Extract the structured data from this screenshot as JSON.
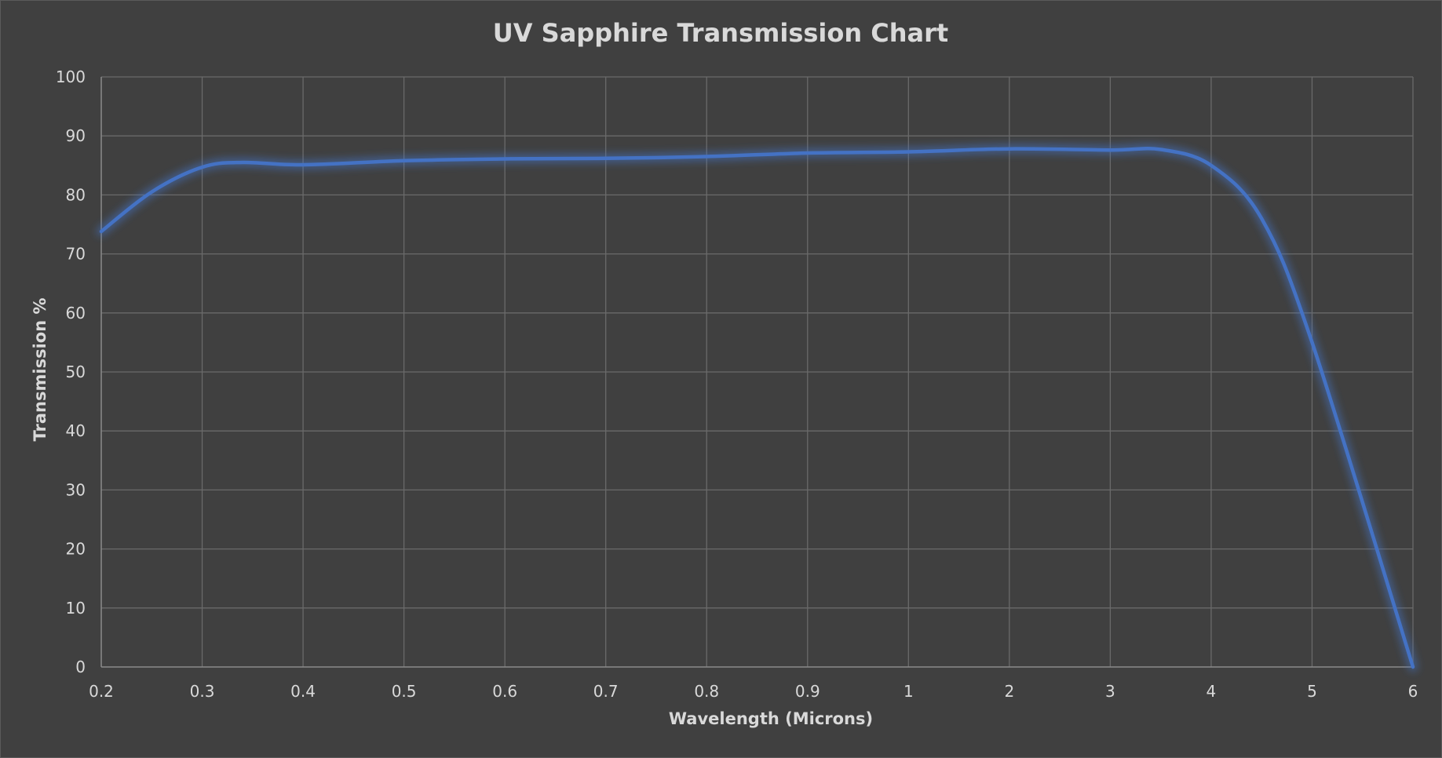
{
  "chart_data": {
    "type": "line",
    "title": "UV Sapphire Transmission Chart",
    "xlabel": "Wavelength (Microns)",
    "ylabel": "Transmission %",
    "categories": [
      "0.2",
      "0.3",
      "0.4",
      "0.5",
      "0.6",
      "0.7",
      "0.8",
      "0.9",
      "1",
      "2",
      "3",
      "4",
      "5",
      "6"
    ],
    "y_ticks": [
      "0",
      "10",
      "20",
      "30",
      "40",
      "50",
      "60",
      "70",
      "80",
      "90",
      "100"
    ],
    "ylim": [
      0,
      100
    ],
    "grid": true,
    "legend": "none",
    "line_color": "#4472c4",
    "series": [
      {
        "points": [
          [
            0,
            73.8
          ],
          [
            0.5,
            80.5
          ],
          [
            1,
            84.7
          ],
          [
            1.4,
            85.5
          ],
          [
            2,
            85.1
          ],
          [
            3,
            85.8
          ],
          [
            4,
            86.1
          ],
          [
            5,
            86.2
          ],
          [
            6,
            86.5
          ],
          [
            7,
            87.1
          ],
          [
            8,
            87.3
          ],
          [
            9,
            87.8
          ],
          [
            10,
            87.6
          ],
          [
            10.5,
            87.7
          ],
          [
            11,
            85.0
          ],
          [
            11.5,
            76.0
          ],
          [
            12,
            55.0
          ],
          [
            13,
            0
          ]
        ]
      }
    ]
  }
}
